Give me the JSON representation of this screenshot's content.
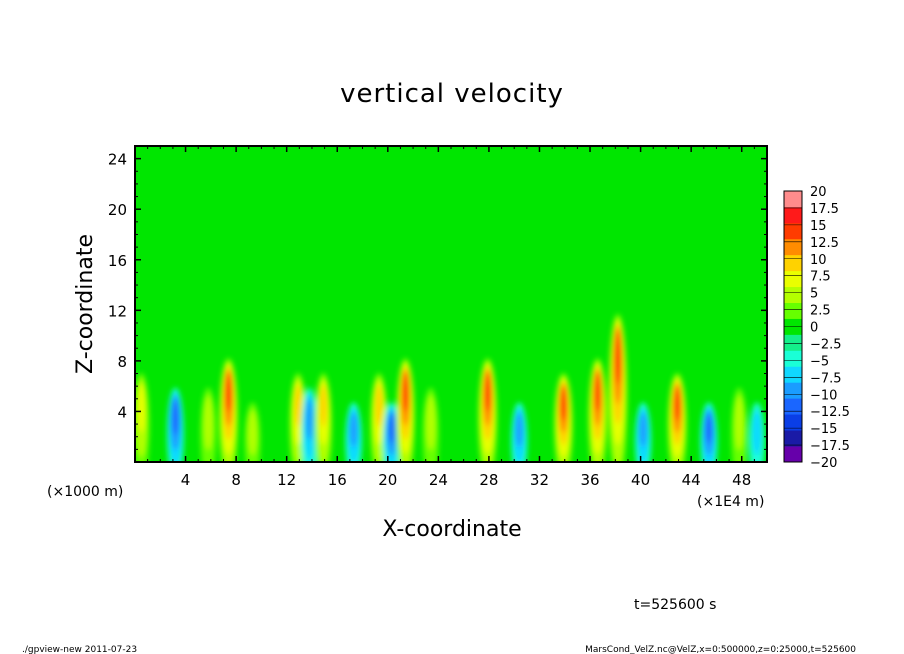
{
  "chart_data": {
    "type": "heatmap",
    "title": "vertical velocity",
    "xlabel": "X-coordinate",
    "ylabel": "Z-coordinate",
    "x_unit_left": "(×1000 m)",
    "x_unit_right": "(×1E4 m)",
    "xlim": [
      0,
      50
    ],
    "ylim": [
      0,
      25
    ],
    "xticks": [
      4,
      8,
      12,
      16,
      20,
      24,
      28,
      32,
      36,
      40,
      44,
      48
    ],
    "yticks": [
      4,
      8,
      12,
      16,
      20,
      24
    ],
    "colorbar": {
      "levels": [
        -20,
        -17.5,
        -15,
        -12.5,
        -10,
        -7.5,
        -5,
        -2.5,
        0,
        2.5,
        5,
        7.5,
        10,
        12.5,
        15,
        17.5,
        20
      ],
      "labels": [
        "20",
        "17.5",
        "15",
        "12.5",
        "10",
        "7.5",
        "5",
        "2.5",
        "0",
        "−2.5",
        "−5",
        "−7.5",
        "−10",
        "−12.5",
        "−15",
        "−17.5",
        "−20"
      ],
      "colors": [
        "#6600aa",
        "#1a1aa6",
        "#0a3ee6",
        "#1a66ff",
        "#1a9cff",
        "#10d8ff",
        "#1affd6",
        "#14f08a",
        "#00e600",
        "#66ff00",
        "#b4ff00",
        "#eaff00",
        "#ffd200",
        "#ff8c00",
        "#ff3c00",
        "#ff1a1a",
        "#ff8c8c"
      ]
    },
    "features": [
      {
        "x": 0.5,
        "z": 5,
        "peak": 8
      },
      {
        "x": 3.2,
        "z": 4,
        "peak": -10
      },
      {
        "x": 5.8,
        "z": 4,
        "peak": 6
      },
      {
        "x": 7.4,
        "z": 6,
        "peak": 17
      },
      {
        "x": 9.3,
        "z": 3,
        "peak": 6
      },
      {
        "x": 12.9,
        "z": 5,
        "peak": 11
      },
      {
        "x": 13.8,
        "z": 4,
        "peak": -8
      },
      {
        "x": 14.9,
        "z": 5,
        "peak": 12
      },
      {
        "x": 17.3,
        "z": 3,
        "peak": -9
      },
      {
        "x": 19.3,
        "z": 5,
        "peak": 12
      },
      {
        "x": 20.3,
        "z": 3,
        "peak": -12
      },
      {
        "x": 21.4,
        "z": 6,
        "peak": 16
      },
      {
        "x": 23.4,
        "z": 4,
        "peak": 7
      },
      {
        "x": 27.9,
        "z": 6,
        "peak": 17
      },
      {
        "x": 30.4,
        "z": 3,
        "peak": -8
      },
      {
        "x": 33.9,
        "z": 5,
        "peak": 16
      },
      {
        "x": 36.6,
        "z": 6,
        "peak": 16
      },
      {
        "x": 38.2,
        "z": 9,
        "peak": 17
      },
      {
        "x": 40.2,
        "z": 3,
        "peak": -8
      },
      {
        "x": 42.9,
        "z": 5,
        "peak": 17
      },
      {
        "x": 45.4,
        "z": 3,
        "peak": -11
      },
      {
        "x": 47.8,
        "z": 4,
        "peak": 6
      },
      {
        "x": 49.2,
        "z": 3,
        "peak": -6
      }
    ]
  },
  "footer": {
    "time_label": "t=525600 s",
    "program_label": "./gpview-new   2011-07-23",
    "source_label": "MarsCond_VelZ.nc@VelZ,x=0:500000,z=0:25000,t=525600"
  }
}
